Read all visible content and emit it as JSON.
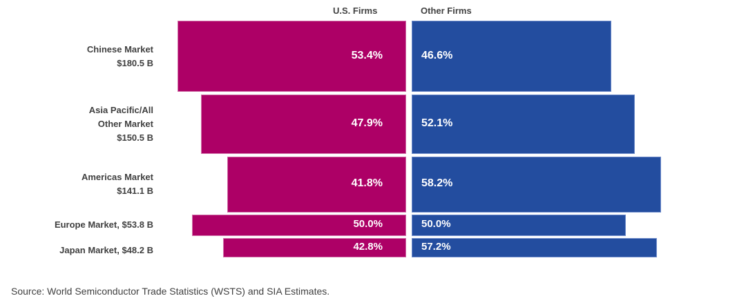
{
  "chart_data": {
    "type": "bar",
    "subtype": "diverging-variable-height",
    "title": "",
    "legend": [
      "U.S. Firms",
      "Other Firms"
    ],
    "series_colors": {
      "U.S. Firms": "#ad0066",
      "Other Firms": "#234d9f"
    },
    "categories": [
      {
        "name": "Chinese Market",
        "size_label": "$180.5 B",
        "market_size_billions": 180.5,
        "label_lines": [
          "Chinese Market",
          "$180.5 B"
        ]
      },
      {
        "name": "Asia Pacific/All Other Market",
        "size_label": "$150.5 B",
        "market_size_billions": 150.5,
        "label_lines": [
          "Asia Pacific/All",
          "Other Market",
          "$150.5 B"
        ]
      },
      {
        "name": "Americas Market",
        "size_label": "$141.1 B",
        "market_size_billions": 141.1,
        "label_lines": [
          "Americas Market",
          "$141.1 B"
        ]
      },
      {
        "name": "Europe Market",
        "size_label": "$53.8 B",
        "market_size_billions": 53.8,
        "label_lines": [
          "Europe Market, $53.8 B"
        ]
      },
      {
        "name": "Japan Market",
        "size_label": "$48.2 B",
        "market_size_billions": 48.2,
        "label_lines": [
          "Japan Market, $48.2 B"
        ]
      }
    ],
    "series": [
      {
        "name": "U.S. Firms",
        "values": [
          53.4,
          47.9,
          41.8,
          50.0,
          42.8
        ],
        "labels": [
          "53.4%",
          "47.9%",
          "41.8%",
          "50.0%",
          "42.8%"
        ]
      },
      {
        "name": "Other Firms",
        "values": [
          46.6,
          52.1,
          58.2,
          50.0,
          57.2
        ],
        "labels": [
          "46.6%",
          "52.1%",
          "58.2%",
          "50.0%",
          "57.2%"
        ]
      }
    ],
    "unit": "%",
    "xlabel": "",
    "ylabel": "",
    "grid": false,
    "legend_placement": "top"
  },
  "source": "Source: World Semiconductor Trade Statistics (WSTS) and SIA Estimates."
}
